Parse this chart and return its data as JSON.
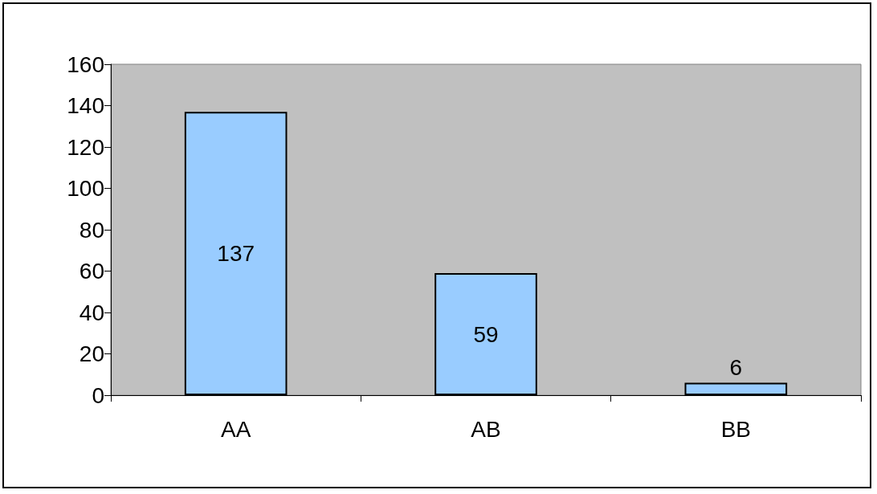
{
  "chart_data": {
    "type": "bar",
    "categories": [
      "AA",
      "AB",
      "BB"
    ],
    "values": [
      137,
      59,
      6
    ],
    "color": "#99ccff",
    "ylim": [
      0,
      160
    ],
    "yticks": [
      0,
      20,
      40,
      60,
      80,
      100,
      120,
      140,
      160
    ],
    "data_labels": true
  }
}
